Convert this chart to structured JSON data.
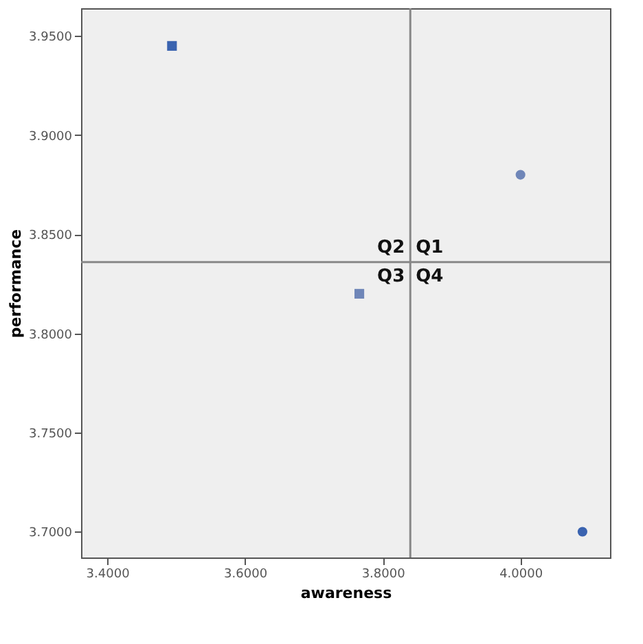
{
  "chart_data": {
    "type": "scatter",
    "xlabel": "awareness",
    "ylabel": "performance",
    "xlim": [
      3.362,
      4.13
    ],
    "ylim": [
      3.687,
      3.964
    ],
    "xticks": [
      {
        "value": 3.4,
        "label": "3.4000"
      },
      {
        "value": 3.6,
        "label": "3.6000"
      },
      {
        "value": 3.8,
        "label": "3.8000"
      },
      {
        "value": 4.0,
        "label": "4.0000"
      }
    ],
    "yticks": [
      {
        "value": 3.7,
        "label": "3.7000"
      },
      {
        "value": 3.75,
        "label": "3.7500"
      },
      {
        "value": 3.8,
        "label": "3.8000"
      },
      {
        "value": 3.85,
        "label": "3.8500"
      },
      {
        "value": 3.9,
        "label": "3.9000"
      },
      {
        "value": 3.95,
        "label": "3.9500"
      }
    ],
    "series": [
      {
        "color": "#3a63b0",
        "marker": "square",
        "x": [
          3.494
        ],
        "values": [
          3.945
        ]
      },
      {
        "color": "#6f86b8",
        "marker": "circle",
        "x": [
          4.0
        ],
        "values": [
          3.88
        ]
      },
      {
        "color": "#6f86b8",
        "marker": "square",
        "x": [
          3.766
        ],
        "values": [
          3.82
        ]
      },
      {
        "color": "#3a63b0",
        "marker": "circle",
        "x": [
          4.09
        ],
        "values": [
          3.7
        ]
      }
    ],
    "ref_lines": [
      {
        "axis": "x",
        "value": 3.84,
        "color": "#888888"
      },
      {
        "axis": "y",
        "value": 3.836,
        "color": "#888888"
      }
    ],
    "annotations": [
      "Q2",
      "Q1",
      "Q3",
      "Q4"
    ],
    "grid": false
  }
}
